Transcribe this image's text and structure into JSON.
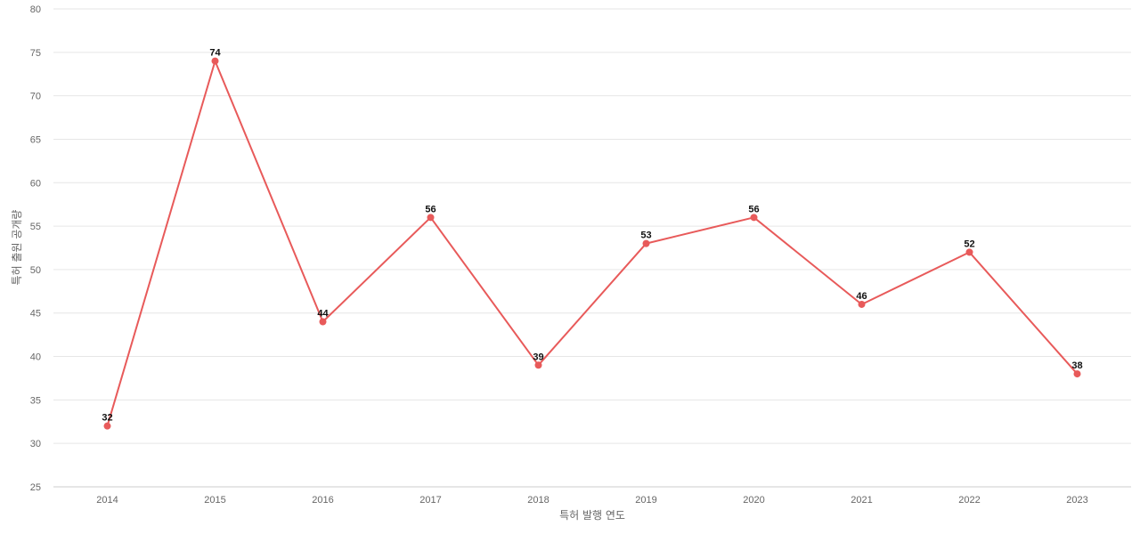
{
  "chart_data": {
    "type": "line",
    "x": [
      "2014",
      "2015",
      "2016",
      "2017",
      "2018",
      "2019",
      "2020",
      "2021",
      "2022",
      "2023"
    ],
    "series": [
      {
        "values": [
          32,
          74,
          44,
          56,
          39,
          53,
          56,
          46,
          52,
          38
        ]
      }
    ],
    "xlabel": "특허 발행 연도",
    "ylabel": "특허 출원 공개량",
    "ylim": [
      25,
      80
    ],
    "yticks": [
      25,
      30,
      35,
      40,
      45,
      50,
      55,
      60,
      65,
      70,
      75,
      80
    ],
    "grid": true,
    "legend": "none",
    "data_labels": true,
    "colors": {
      "line": "#e85a5a",
      "point": "#e85a5a"
    }
  }
}
